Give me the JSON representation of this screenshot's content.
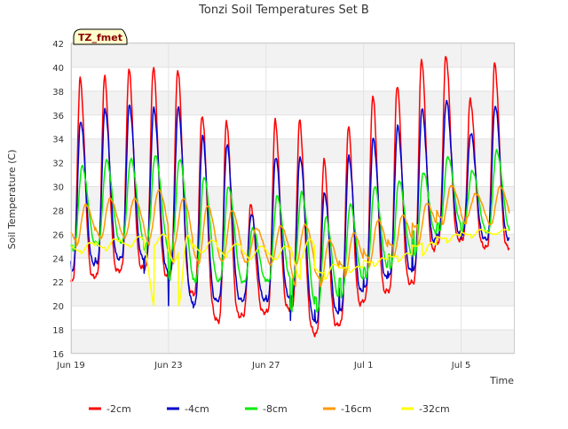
{
  "chart_data": {
    "type": "line",
    "title": "Tonzi Soil Temperatures Set B",
    "badge": "TZ_fmet",
    "xlabel": "Time",
    "ylabel": "Soil Temperature (C)",
    "x_ticks": [
      {
        "label": "Jun 19",
        "day": 0
      },
      {
        "label": "Jun 23",
        "day": 4
      },
      {
        "label": "Jun 27",
        "day": 8
      },
      {
        "label": "Jul 1",
        "day": 12
      },
      {
        "label": "Jul 5",
        "day": 16
      }
    ],
    "xlim_days": [
      0,
      18.2
    ],
    "ylim": [
      16,
      42
    ],
    "y_ticks": [
      16,
      18,
      20,
      22,
      24,
      26,
      28,
      30,
      32,
      34,
      36,
      38,
      40,
      42
    ],
    "grid": true,
    "legend_position": "bottom",
    "series": [
      {
        "name": "-2cm",
        "color": "#ff0000",
        "min": [
          22.0,
          22.5,
          23.0,
          23.2,
          22.4,
          21.0,
          18.7,
          19.2,
          19.5,
          19.8,
          17.6,
          18.5,
          20.5,
          21.3,
          22.0,
          25.3,
          25.6,
          24.9
        ],
        "max": [
          39.0,
          39.2,
          39.8,
          40.0,
          39.8,
          36.0,
          35.5,
          28.5,
          35.5,
          35.5,
          32.2,
          35.0,
          37.6,
          38.5,
          40.7,
          41.0,
          37.3,
          40.3
        ]
      },
      {
        "name": "-4cm",
        "color": "#0000cc",
        "min": [
          23.0,
          23.6,
          24.0,
          24.0,
          22.8,
          20.0,
          20.5,
          20.5,
          20.5,
          20.8,
          18.6,
          19.6,
          21.5,
          22.5,
          23.0,
          25.9,
          26.1,
          25.6
        ],
        "max": [
          35.5,
          36.5,
          36.8,
          36.5,
          36.6,
          34.2,
          33.5,
          27.7,
          32.5,
          32.5,
          29.5,
          32.5,
          34.0,
          35.0,
          36.5,
          37.2,
          34.5,
          36.8
        ]
      },
      {
        "name": "-8cm",
        "color": "#00ee00",
        "min": [
          24.6,
          25.1,
          25.4,
          25.3,
          24.5,
          22.0,
          22.2,
          22.0,
          22.0,
          22.2,
          19.5,
          20.8,
          22.4,
          23.2,
          24.3,
          26.3,
          26.9,
          26.2
        ],
        "max": [
          31.7,
          32.2,
          32.3,
          32.6,
          32.3,
          30.8,
          30.0,
          26.5,
          29.2,
          29.5,
          27.4,
          28.5,
          30.0,
          30.5,
          31.2,
          32.5,
          31.3,
          33.0
        ]
      },
      {
        "name": "-16cm",
        "color": "#ff9900",
        "min": [
          25.0,
          25.6,
          25.8,
          25.7,
          25.1,
          23.5,
          23.8,
          23.7,
          23.6,
          23.4,
          21.6,
          22.4,
          23.3,
          24.1,
          25.1,
          26.8,
          27.4,
          26.8
        ],
        "max": [
          28.5,
          29.0,
          29.0,
          29.7,
          29.0,
          28.4,
          28.0,
          26.5,
          26.7,
          26.8,
          25.5,
          26.1,
          27.2,
          27.6,
          28.6,
          30.1,
          29.4,
          30.0
        ]
      },
      {
        "name": "-32cm",
        "color": "#ffff00",
        "min": [
          24.4,
          24.6,
          24.9,
          25.1,
          20.0,
          24.5,
          24.5,
          24.1,
          23.9,
          23.9,
          22.2,
          22.8,
          23.3,
          23.7,
          24.2,
          25.3,
          25.7,
          26.0
        ],
        "max": [
          25.3,
          25.6,
          25.8,
          26.0,
          25.9,
          25.5,
          25.2,
          25.0,
          25.0,
          25.6,
          23.5,
          23.3,
          24.0,
          24.4,
          25.3,
          26.0,
          26.4,
          26.4
        ]
      }
    ]
  }
}
